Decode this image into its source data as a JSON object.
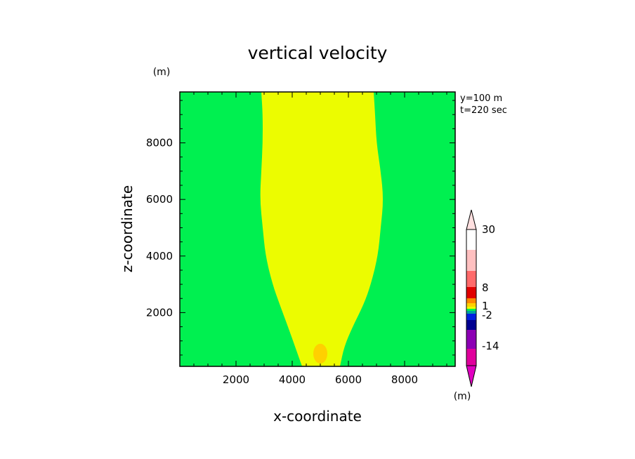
{
  "chart_data": {
    "type": "heatmap",
    "title": "vertical velocity",
    "xlabel": "x-coordinate",
    "ylabel": "z-coordinate",
    "unit_left": "(m)",
    "unit_colorbar": "(m)",
    "info": [
      "y=100 m",
      "t=220 sec"
    ],
    "xlim": [
      0,
      9800
    ],
    "ylim": [
      100,
      9800
    ],
    "x_ticks": [
      2000,
      4000,
      6000,
      8000
    ],
    "y_ticks": [
      2000,
      4000,
      6000,
      8000
    ],
    "background_level_color": "#00f050",
    "plume": {
      "color": "#ecfc00",
      "half_width_profile": [
        {
          "z": 100,
          "left": 4350,
          "right": 5700
        },
        {
          "z": 800,
          "left": 4100,
          "right": 5850
        },
        {
          "z": 1500,
          "left": 3850,
          "right": 6150
        },
        {
          "z": 2300,
          "left": 3550,
          "right": 6550
        },
        {
          "z": 3000,
          "left": 3300,
          "right": 6800
        },
        {
          "z": 4000,
          "left": 3050,
          "right": 7050
        },
        {
          "z": 5000,
          "left": 2950,
          "right": 7150
        },
        {
          "z": 6000,
          "left": 2850,
          "right": 7250
        },
        {
          "z": 7000,
          "left": 2900,
          "right": 7150
        },
        {
          "z": 8000,
          "left": 2950,
          "right": 7000
        },
        {
          "z": 9000,
          "left": 2950,
          "right": 6950
        },
        {
          "z": 9800,
          "left": 2900,
          "right": 6900
        }
      ]
    },
    "core": {
      "color": "#ffd000",
      "x": 5000,
      "z": 550,
      "rx": 250,
      "rz": 350
    },
    "colorbar": {
      "labels": [
        {
          "text": "30",
          "value": 30
        },
        {
          "text": "8",
          "value": 8
        },
        {
          "text": "1",
          "value": 1
        },
        {
          "text": "-2",
          "value": -2
        },
        {
          "text": "-14",
          "value": -14
        }
      ],
      "segments": [
        {
          "color": "#e0009c"
        },
        {
          "color": "#8c00b4"
        },
        {
          "color": "#000090"
        },
        {
          "color": "#0020e0"
        },
        {
          "color": "#00a0a0"
        },
        {
          "color": "#00f050"
        },
        {
          "color": "#ecfc00"
        },
        {
          "color": "#ffd000"
        },
        {
          "color": "#ff8800"
        },
        {
          "color": "#e00000"
        },
        {
          "color": "#ff6a6a"
        },
        {
          "color": "#ffc0c0"
        }
      ],
      "cap_top_color": "#ffe0e0",
      "cap_bottom_color": "#e000c0"
    }
  }
}
